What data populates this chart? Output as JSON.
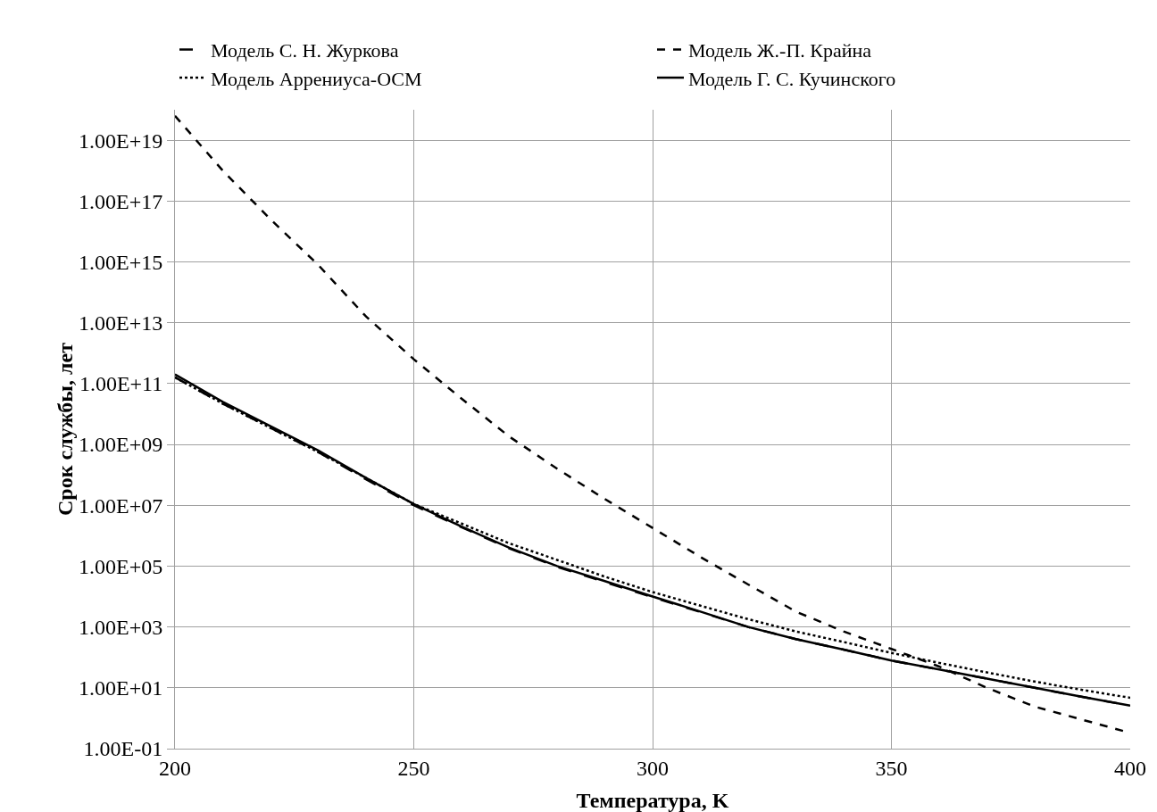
{
  "chart_data": {
    "type": "line",
    "xlabel": "Температура, K",
    "ylabel": "Срок службы, лет",
    "x": [
      200,
      210,
      220,
      230,
      240,
      250,
      260,
      270,
      280,
      290,
      300,
      310,
      320,
      330,
      340,
      350,
      360,
      370,
      380,
      390,
      400
    ],
    "series": [
      {
        "name": "Модель С. Н. Журкова",
        "color": "#000000",
        "line_style": "longdash",
        "values": [
          160000000000.0,
          22000000000.0,
          3500000000.0,
          560000000.0,
          71000000.0,
          10000000.0,
          1900000.0,
          380000.0,
          95000.0,
          30000.0,
          9500.0,
          3100.0,
          1000.0,
          400,
          180,
          79,
          40,
          20,
          10,
          5,
          2.6
        ]
      },
      {
        "name": "Модель Ж.-П. Крайна",
        "color": "#000000",
        "line_style": "dashed",
        "values": [
          6.3e+19,
          1e+18,
          2.5e+16,
          790000000000000.0,
          16000000000000.0,
          630000000000.0,
          32000000000.0,
          1800000000.0,
          160000000.0,
          16000000.0,
          1800000.0,
          200000.0,
          25000.0,
          3200.0,
          710,
          190,
          50,
          10,
          2.4,
          0.89,
          0.33
        ]
      },
      {
        "name": "Модель Аррениуса-ОСМ",
        "color": "#000000",
        "line_style": "dotted",
        "values": [
          160000000000.0,
          22000000000.0,
          3500000000.0,
          560000000.0,
          79000000.0,
          11000000.0,
          2500000.0,
          560000.0,
          160000.0,
          45000.0,
          14000.0,
          5000.0,
          1800.0,
          710,
          320,
          140,
          66,
          32,
          16,
          8.5,
          4.7
        ]
      },
      {
        "name": "Модель Г. С. Кучинского",
        "color": "#000000",
        "line_style": "solid",
        "values": [
          200000000000.0,
          25000000000.0,
          4000000000.0,
          630000000.0,
          79000000.0,
          11000000.0,
          2000000.0,
          400000.0,
          100000.0,
          32000.0,
          10000.0,
          3200.0,
          1000.0,
          400,
          180,
          79,
          40,
          20,
          10,
          5,
          2.6
        ]
      }
    ],
    "log": "y",
    "grid": true,
    "legend": "top",
    "marker": "none",
    "xlim": [
      200,
      400
    ],
    "xticks": [
      200,
      250,
      300,
      350,
      400
    ],
    "ylim": [
      0.1,
      1e+20
    ],
    "yticks": [
      {
        "value": 0.1,
        "label": "1.00E-01"
      },
      {
        "value": 10,
        "label": "1.00E+01"
      },
      {
        "value": 1000,
        "label": "1.00E+03"
      },
      {
        "value": 100000.0,
        "label": "1.00E+05"
      },
      {
        "value": 10000000.0,
        "label": "1.00E+07"
      },
      {
        "value": 1000000000.0,
        "label": "1.00E+09"
      },
      {
        "value": 100000000000.0,
        "label": "1.00E+11"
      },
      {
        "value": 10000000000000.0,
        "label": "1.00E+13"
      },
      {
        "value": 1000000000000000.0,
        "label": "1.00E+15"
      },
      {
        "value": 1e+17,
        "label": "1.00E+17"
      },
      {
        "value": 1e+19,
        "label": "1.00E+19"
      }
    ]
  }
}
